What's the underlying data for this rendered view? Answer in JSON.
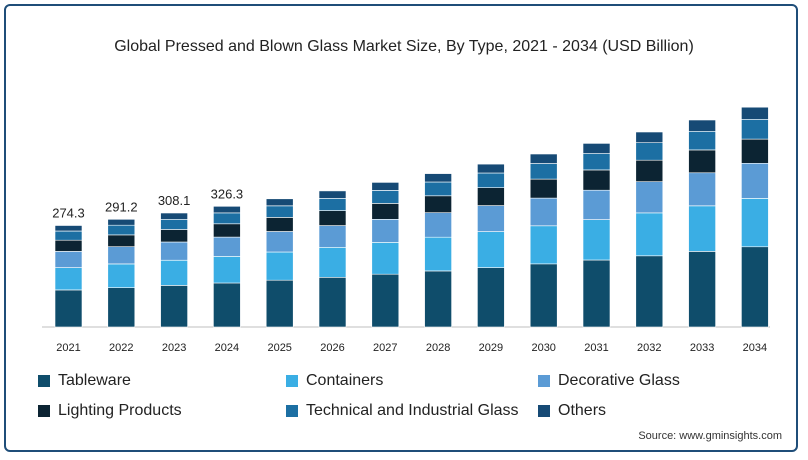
{
  "chart_data": {
    "type": "bar",
    "stacked": true,
    "title": "Global Pressed and Blown Glass Market Size, By Type, 2021 - 2034 (USD Billion)",
    "categories": [
      "2021",
      "2022",
      "2023",
      "2024",
      "2025",
      "2026",
      "2027",
      "2028",
      "2029",
      "2030",
      "2031",
      "2032",
      "2033",
      "2034"
    ],
    "totals_labeled": [
      "274.3",
      "291.2",
      "308.1",
      "326.3",
      "",
      "",
      "",
      "",
      "",
      "",
      "",
      "",
      "",
      ""
    ],
    "series": [
      {
        "name": "Tableware",
        "color": "#0f4d6b",
        "values": [
          100.1,
          106.3,
          112.5,
          119.1,
          126.5,
          134.3,
          142.6,
          151.4,
          160.8,
          170.7,
          181.2,
          192.4,
          204.3,
          216.9
        ]
      },
      {
        "name": "Containers",
        "color": "#3aaee4",
        "values": [
          60.4,
          64.1,
          67.8,
          71.8,
          76.2,
          81.0,
          86.0,
          91.2,
          96.9,
          102.9,
          109.2,
          116.0,
          123.1,
          130.7
        ]
      },
      {
        "name": "Decorative Glass",
        "color": "#5b9bd5",
        "values": [
          43.9,
          46.6,
          49.3,
          52.2,
          55.4,
          58.8,
          62.5,
          66.3,
          70.4,
          74.8,
          79.4,
          84.3,
          89.5,
          95.0
        ]
      },
      {
        "name": "Lighting Products",
        "color": "#0c2433",
        "values": [
          30.2,
          32.0,
          33.9,
          35.9,
          38.1,
          40.5,
          43.0,
          45.6,
          48.4,
          51.4,
          54.6,
          58.0,
          61.5,
          65.3
        ]
      },
      {
        "name": "Technical and Industrial Glass",
        "color": "#1c6fa3",
        "values": [
          24.7,
          26.2,
          27.7,
          29.4,
          31.2,
          33.1,
          35.2,
          37.3,
          39.6,
          42.1,
          44.7,
          47.4,
          50.4,
          53.5
        ]
      },
      {
        "name": "Others",
        "color": "#164a75",
        "values": [
          15.0,
          16.0,
          16.9,
          17.9,
          19.0,
          20.2,
          21.4,
          22.7,
          24.1,
          25.6,
          27.2,
          28.9,
          30.7,
          32.6
        ]
      }
    ],
    "ylim": [
      0,
      600
    ],
    "grid": false,
    "legend_position": "bottom",
    "source": "Source: www.gminsights.com"
  }
}
